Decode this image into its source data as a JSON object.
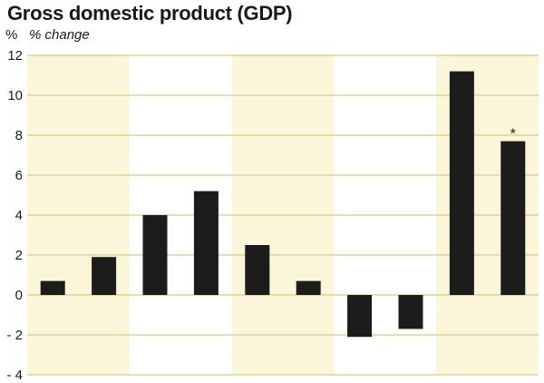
{
  "chart_data": {
    "type": "bar",
    "title": "Gross domestic product (GDP)",
    "unit": "%",
    "subtitle": "% change",
    "ylim": [
      -4,
      12
    ],
    "yticks": [
      12,
      10,
      8,
      6,
      4,
      2,
      0,
      -2,
      -4
    ],
    "ytick_labels": [
      "12",
      "10",
      "8",
      "6",
      "4",
      "2",
      "0",
      "- 2",
      "- 4"
    ],
    "grid": true,
    "band_count": 5,
    "band_colors": [
      "#fbf6da",
      "#ffffff"
    ],
    "bar_color": "#1c1c1c",
    "grid_color": "#d8c98a",
    "values": [
      0.7,
      1.9,
      4.0,
      5.2,
      2.5,
      0.7,
      -2.1,
      -1.7,
      11.2,
      7.7
    ],
    "annotations": [
      {
        "bar_index": 9,
        "text": "*"
      }
    ]
  }
}
